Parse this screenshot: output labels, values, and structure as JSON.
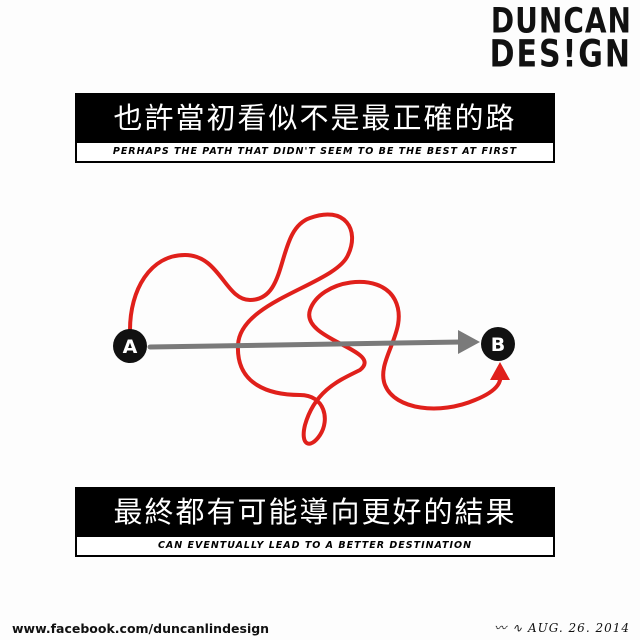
{
  "logo": {
    "line1": "DUNCAN",
    "line2": "DES!GN"
  },
  "top_caption": {
    "chinese": "也許當初看似不是最正確的路",
    "english": "PERHAPS THE PATH THAT DIDN'T SEEM TO BE THE BEST AT FIRST"
  },
  "diagram": {
    "start_label": "A",
    "end_label": "B",
    "colors": {
      "direct_path": "#7a7a7a",
      "winding_path": "#e0201b",
      "node": "#111111"
    }
  },
  "bottom_caption": {
    "chinese": "最終都有可能導向更好的結果",
    "english": "CAN EVENTUALLY LEAD TO A BETTER DESTINATION"
  },
  "footer": {
    "url": "www.facebook.com/duncanlindesign",
    "date": "AUG. 26. 2014"
  }
}
